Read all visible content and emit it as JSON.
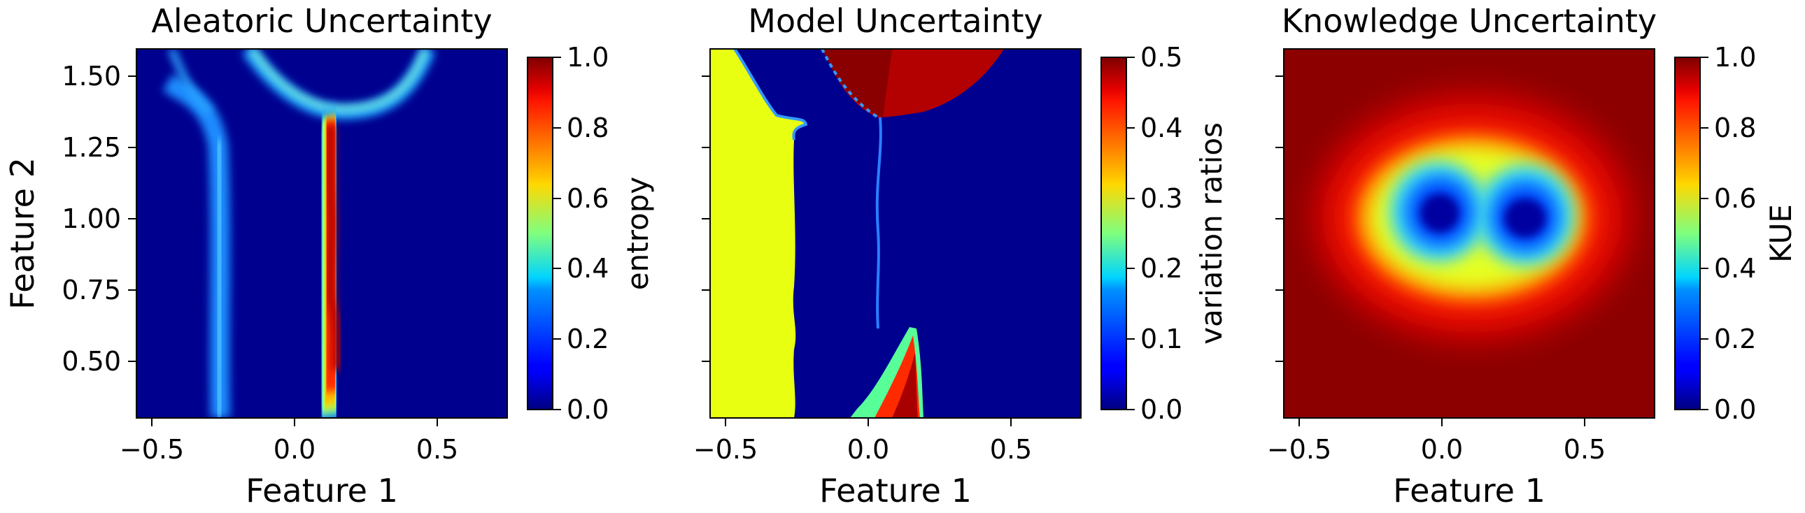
{
  "figure": {
    "panels": [
      {
        "title": "Aleatoric Uncertainty",
        "xlabel": "Feature 1",
        "ylabel": "Feature 2",
        "colorbar_label": "entropy"
      },
      {
        "title": "Model Uncertainty",
        "xlabel": "Feature 1",
        "ylabel": "",
        "colorbar_label": "variation ratios"
      },
      {
        "title": "Knowledge Uncertainty",
        "xlabel": "Feature 1",
        "ylabel": "",
        "colorbar_label": "KUE"
      }
    ]
  },
  "chart_data": [
    {
      "type": "heatmap",
      "title": "Aleatoric Uncertainty",
      "xlabel": "Feature 1",
      "ylabel": "Feature 2",
      "xlim": [
        -0.55,
        0.75
      ],
      "ylim": [
        0.3,
        1.6
      ],
      "xticks": [
        -0.5,
        0.0,
        0.5
      ],
      "xticklabels": [
        "−0.5",
        "0.0",
        "0.5"
      ],
      "yticks": [
        0.5,
        0.75,
        1.0,
        1.25,
        1.5
      ],
      "yticklabels": [
        "0.50",
        "0.75",
        "1.00",
        "1.25",
        "1.50"
      ],
      "colormap": "jet",
      "colorbar": {
        "label": "entropy",
        "min": 0.0,
        "max": 1.0,
        "ticks": [
          0.0,
          0.2,
          0.4,
          0.6,
          0.8,
          1.0
        ],
        "ticklabels": [
          "0.0",
          "0.2",
          "0.4",
          "0.6",
          "0.8",
          "1.0"
        ]
      },
      "features": [
        {
          "kind": "vertical-band",
          "x_center": -0.27,
          "y_range": [
            0.3,
            1.34
          ],
          "value": 0.3
        },
        {
          "kind": "vertical-band",
          "x_center": 0.13,
          "y_range": [
            0.35,
            1.35
          ],
          "value": 1.0
        },
        {
          "kind": "arc",
          "x_range": [
            -0.42,
            0.47
          ],
          "y_range": [
            1.3,
            1.6
          ],
          "value": 0.35
        }
      ]
    },
    {
      "type": "heatmap",
      "title": "Model Uncertainty",
      "xlabel": "Feature 1",
      "xlim": [
        -0.55,
        0.75
      ],
      "ylim": [
        0.3,
        1.6
      ],
      "xticks": [
        -0.5,
        0.0,
        0.5
      ],
      "xticklabels": [
        "−0.5",
        "0.0",
        "0.5"
      ],
      "yticks": [
        0.5,
        0.75,
        1.0,
        1.25,
        1.5
      ],
      "colormap": "jet",
      "colorbar": {
        "label": "variation ratios",
        "min": 0.0,
        "max": 0.5,
        "ticks": [
          0.0,
          0.1,
          0.2,
          0.3,
          0.4,
          0.5
        ],
        "ticklabels": [
          "0.0",
          "0.1",
          "0.2",
          "0.3",
          "0.4",
          "0.5"
        ]
      },
      "features": [
        {
          "kind": "region",
          "x_range": [
            -0.55,
            -0.25
          ],
          "y_range": [
            0.3,
            1.6
          ],
          "value": 0.32
        },
        {
          "kind": "region",
          "x_range": [
            0.05,
            0.5
          ],
          "y_range": [
            1.35,
            1.6
          ],
          "value": 0.5
        },
        {
          "kind": "region",
          "x_range": [
            -0.05,
            0.18
          ],
          "y_range": [
            0.3,
            0.65
          ],
          "value": 0.45
        }
      ]
    },
    {
      "type": "heatmap",
      "title": "Knowledge Uncertainty",
      "xlabel": "Feature 1",
      "xlim": [
        -0.55,
        0.75
      ],
      "ylim": [
        0.3,
        1.6
      ],
      "xticks": [
        -0.5,
        0.0,
        0.5
      ],
      "xticklabels": [
        "−0.5",
        "0.0",
        "0.5"
      ],
      "yticks": [
        0.5,
        0.75,
        1.0,
        1.25,
        1.5
      ],
      "colormap": "jet",
      "colorbar": {
        "label": "KUE",
        "min": 0.0,
        "max": 1.0,
        "ticks": [
          0.0,
          0.2,
          0.4,
          0.6,
          0.8,
          1.0
        ],
        "ticklabels": [
          "0.0",
          "0.2",
          "0.4",
          "0.6",
          "0.8",
          "1.0"
        ]
      },
      "features": [
        {
          "kind": "gaussian-minimum",
          "x_center": 0.0,
          "y_center": 1.02,
          "value": 0.1
        },
        {
          "kind": "gaussian-minimum",
          "x_center": 0.3,
          "y_center": 1.0,
          "value": 0.05
        }
      ]
    }
  ]
}
